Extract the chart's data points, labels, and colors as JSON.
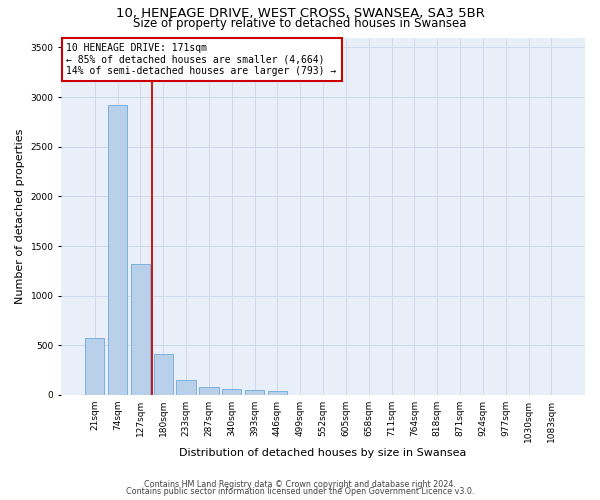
{
  "title1": "10, HENEAGE DRIVE, WEST CROSS, SWANSEA, SA3 5BR",
  "title2": "Size of property relative to detached houses in Swansea",
  "xlabel": "Distribution of detached houses by size in Swansea",
  "ylabel": "Number of detached properties",
  "bin_labels": [
    "21sqm",
    "74sqm",
    "127sqm",
    "180sqm",
    "233sqm",
    "287sqm",
    "340sqm",
    "393sqm",
    "446sqm",
    "499sqm",
    "552sqm",
    "605sqm",
    "658sqm",
    "711sqm",
    "764sqm",
    "818sqm",
    "871sqm",
    "924sqm",
    "977sqm",
    "1030sqm",
    "1083sqm"
  ],
  "bar_values": [
    570,
    2920,
    1320,
    410,
    155,
    80,
    55,
    45,
    40,
    0,
    0,
    0,
    0,
    0,
    0,
    0,
    0,
    0,
    0,
    0,
    0
  ],
  "bar_color": "#b8d0ea",
  "bar_edgecolor": "#5a9fd4",
  "grid_color": "#ccdaeb",
  "background_color": "#e8eff8",
  "annotation_text": "10 HENEAGE DRIVE: 171sqm\n← 85% of detached houses are smaller (4,664)\n14% of semi-detached houses are larger (793) →",
  "vline_x": 2.5,
  "vline_color": "#cc0000",
  "annotation_box_edgecolor": "#cc0000",
  "ylim": [
    0,
    3600
  ],
  "yticks": [
    0,
    500,
    1000,
    1500,
    2000,
    2500,
    3000,
    3500
  ],
  "footer1": "Contains HM Land Registry data © Crown copyright and database right 2024.",
  "footer2": "Contains public sector information licensed under the Open Government Licence v3.0.",
  "title1_fontsize": 9.5,
  "title2_fontsize": 8.5,
  "tick_fontsize": 6.5,
  "ylabel_fontsize": 8,
  "xlabel_fontsize": 8,
  "annotation_fontsize": 7,
  "footer_fontsize": 5.8
}
